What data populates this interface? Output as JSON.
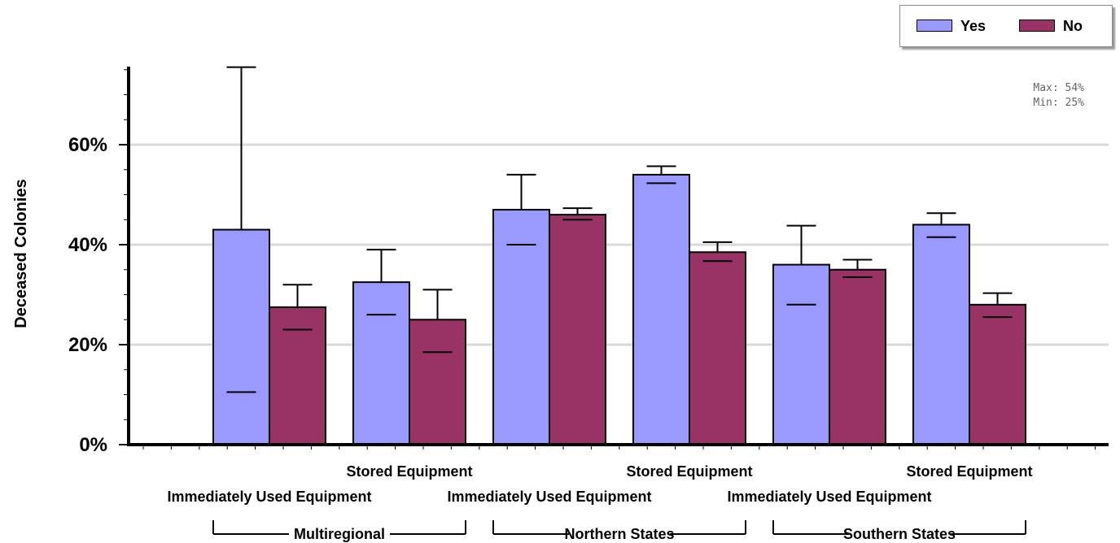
{
  "chart_data": {
    "type": "bar",
    "ylabel": "Deceased Colonies",
    "yticks": [
      "0%",
      "20%",
      "40%",
      "60%"
    ],
    "ylim": [
      0,
      76
    ],
    "grid": true,
    "legend_position": "top-right",
    "series": [
      {
        "name": "Yes",
        "color": "#9999ff"
      },
      {
        "name": "No",
        "color": "#993366"
      }
    ],
    "groups": [
      {
        "label": "Multiregional",
        "categories": [
          {
            "label": "Immediately Used Equipment",
            "row": "lower",
            "bars": [
              {
                "series": "Yes",
                "value": 43,
                "err_low": 10.5,
                "err_high": 75.5
              },
              {
                "series": "No",
                "value": 27.5,
                "err_low": 23,
                "err_high": 32
              }
            ]
          },
          {
            "label": "Stored Equipment",
            "row": "upper",
            "bars": [
              {
                "series": "Yes",
                "value": 32.5,
                "err_low": 26,
                "err_high": 39
              },
              {
                "series": "No",
                "value": 25,
                "err_low": 18.5,
                "err_high": 31
              }
            ]
          }
        ]
      },
      {
        "label": "Northern States",
        "categories": [
          {
            "label": "Immediately Used Equipment",
            "row": "lower",
            "bars": [
              {
                "series": "Yes",
                "value": 47,
                "err_low": 40,
                "err_high": 54
              },
              {
                "series": "No",
                "value": 46,
                "err_low": 45,
                "err_high": 47.3
              }
            ]
          },
          {
            "label": "Stored Equipment",
            "row": "upper",
            "bars": [
              {
                "series": "Yes",
                "value": 54,
                "err_low": 52.3,
                "err_high": 55.7
              },
              {
                "series": "No",
                "value": 38.5,
                "err_low": 36.7,
                "err_high": 40.5
              }
            ]
          }
        ]
      },
      {
        "label": "Southern States",
        "categories": [
          {
            "label": "Immediately Used Equipment",
            "row": "lower",
            "bars": [
              {
                "series": "Yes",
                "value": 36,
                "err_low": 28,
                "err_high": 43.8
              },
              {
                "series": "No",
                "value": 35,
                "err_low": 33.5,
                "err_high": 37
              }
            ]
          },
          {
            "label": "Stored Equipment",
            "row": "upper",
            "bars": [
              {
                "series": "Yes",
                "value": 44,
                "err_low": 41.5,
                "err_high": 46.3
              },
              {
                "series": "No",
                "value": 28,
                "err_low": 25.5,
                "err_high": 30.3
              }
            ]
          }
        ]
      }
    ],
    "annotations": {
      "max": "Max: 54%",
      "min": "Min: 25%"
    }
  }
}
